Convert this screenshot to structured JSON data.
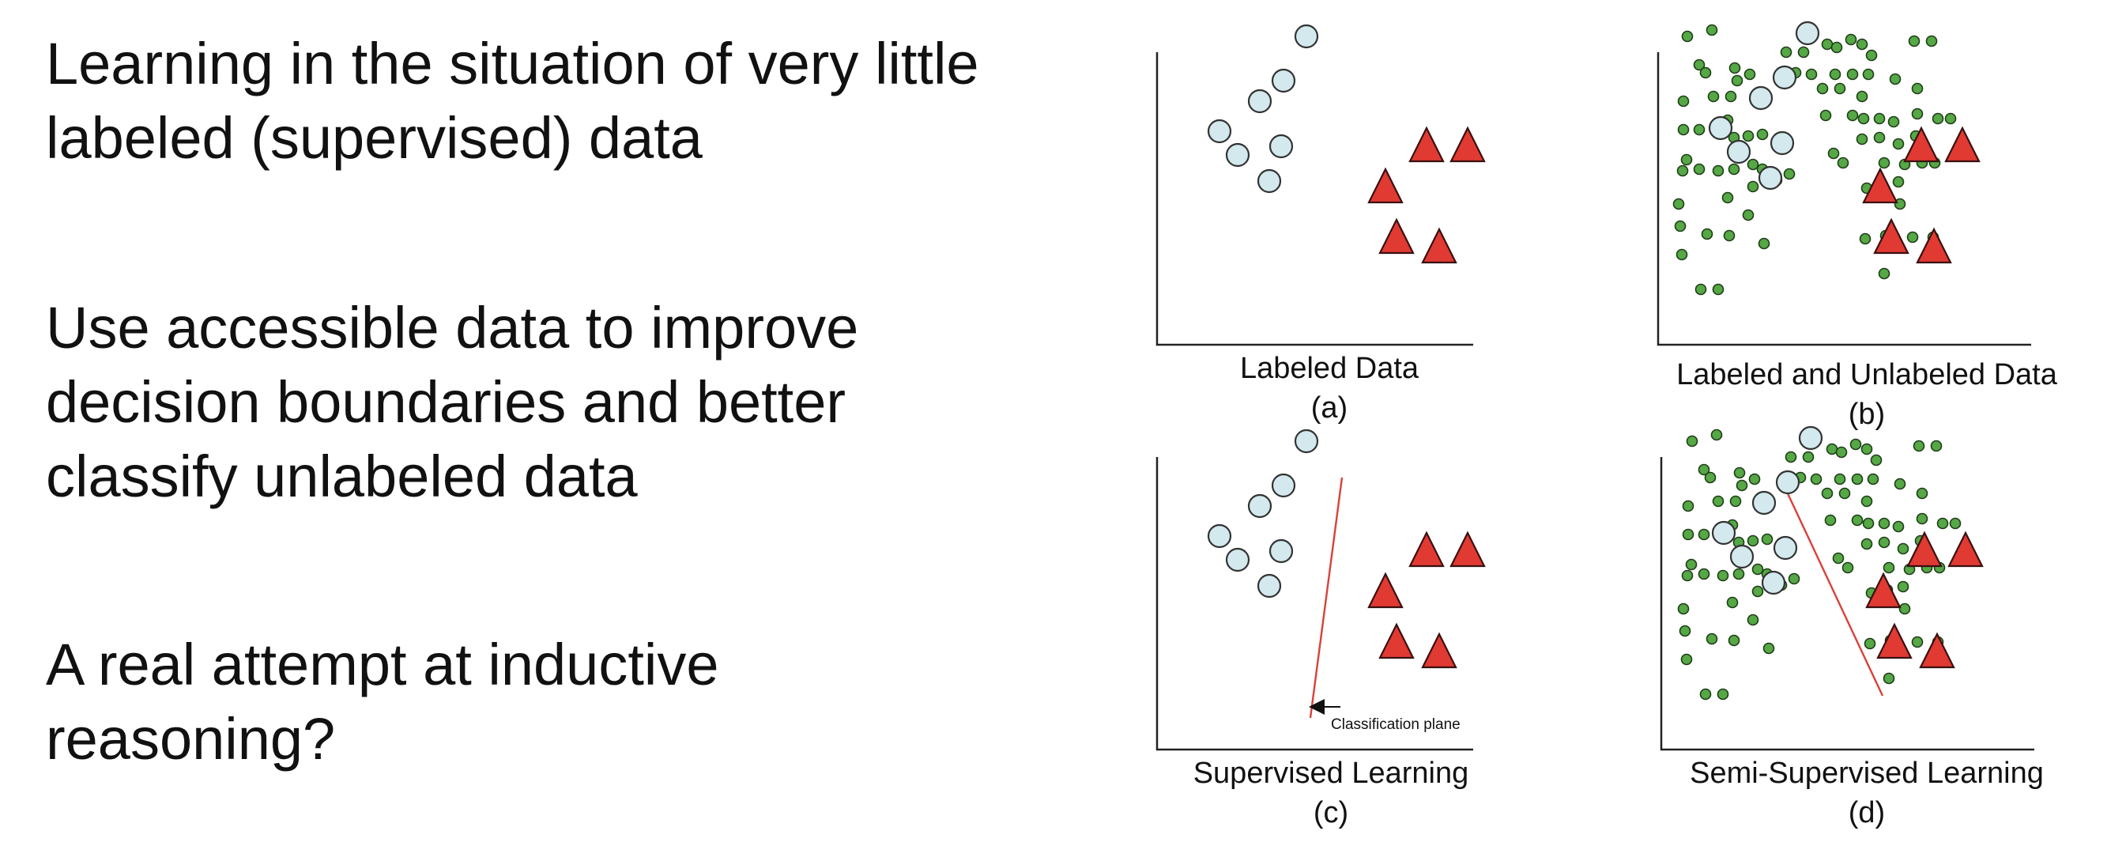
{
  "bullets": [
    {
      "lines": [
        "Learning in the situation of very little",
        "labeled (supervised) data"
      ]
    },
    {
      "lines": [
        "Use accessible data to improve",
        "decision boundaries and better",
        "classify unlabeled data"
      ]
    },
    {
      "lines": [
        "A real attempt at inductive",
        "reasoning?"
      ]
    }
  ],
  "panels": [
    {
      "caption": "Labeled Data",
      "letter": "(a)"
    },
    {
      "caption": "Labeled and Unlabeled Data",
      "letter": "(b)"
    },
    {
      "caption": "Supervised Learning",
      "letter": "(c)"
    },
    {
      "caption": "Semi-Supervised Learning",
      "letter": "(d)"
    }
  ],
  "annotation": "Classification plane",
  "colors": {
    "labeled_circle": "#d3e9ee",
    "labeled_triangle": "#e03a33",
    "unlabeled_dot": "#55a845",
    "boundary_line": "#d9413a"
  }
}
